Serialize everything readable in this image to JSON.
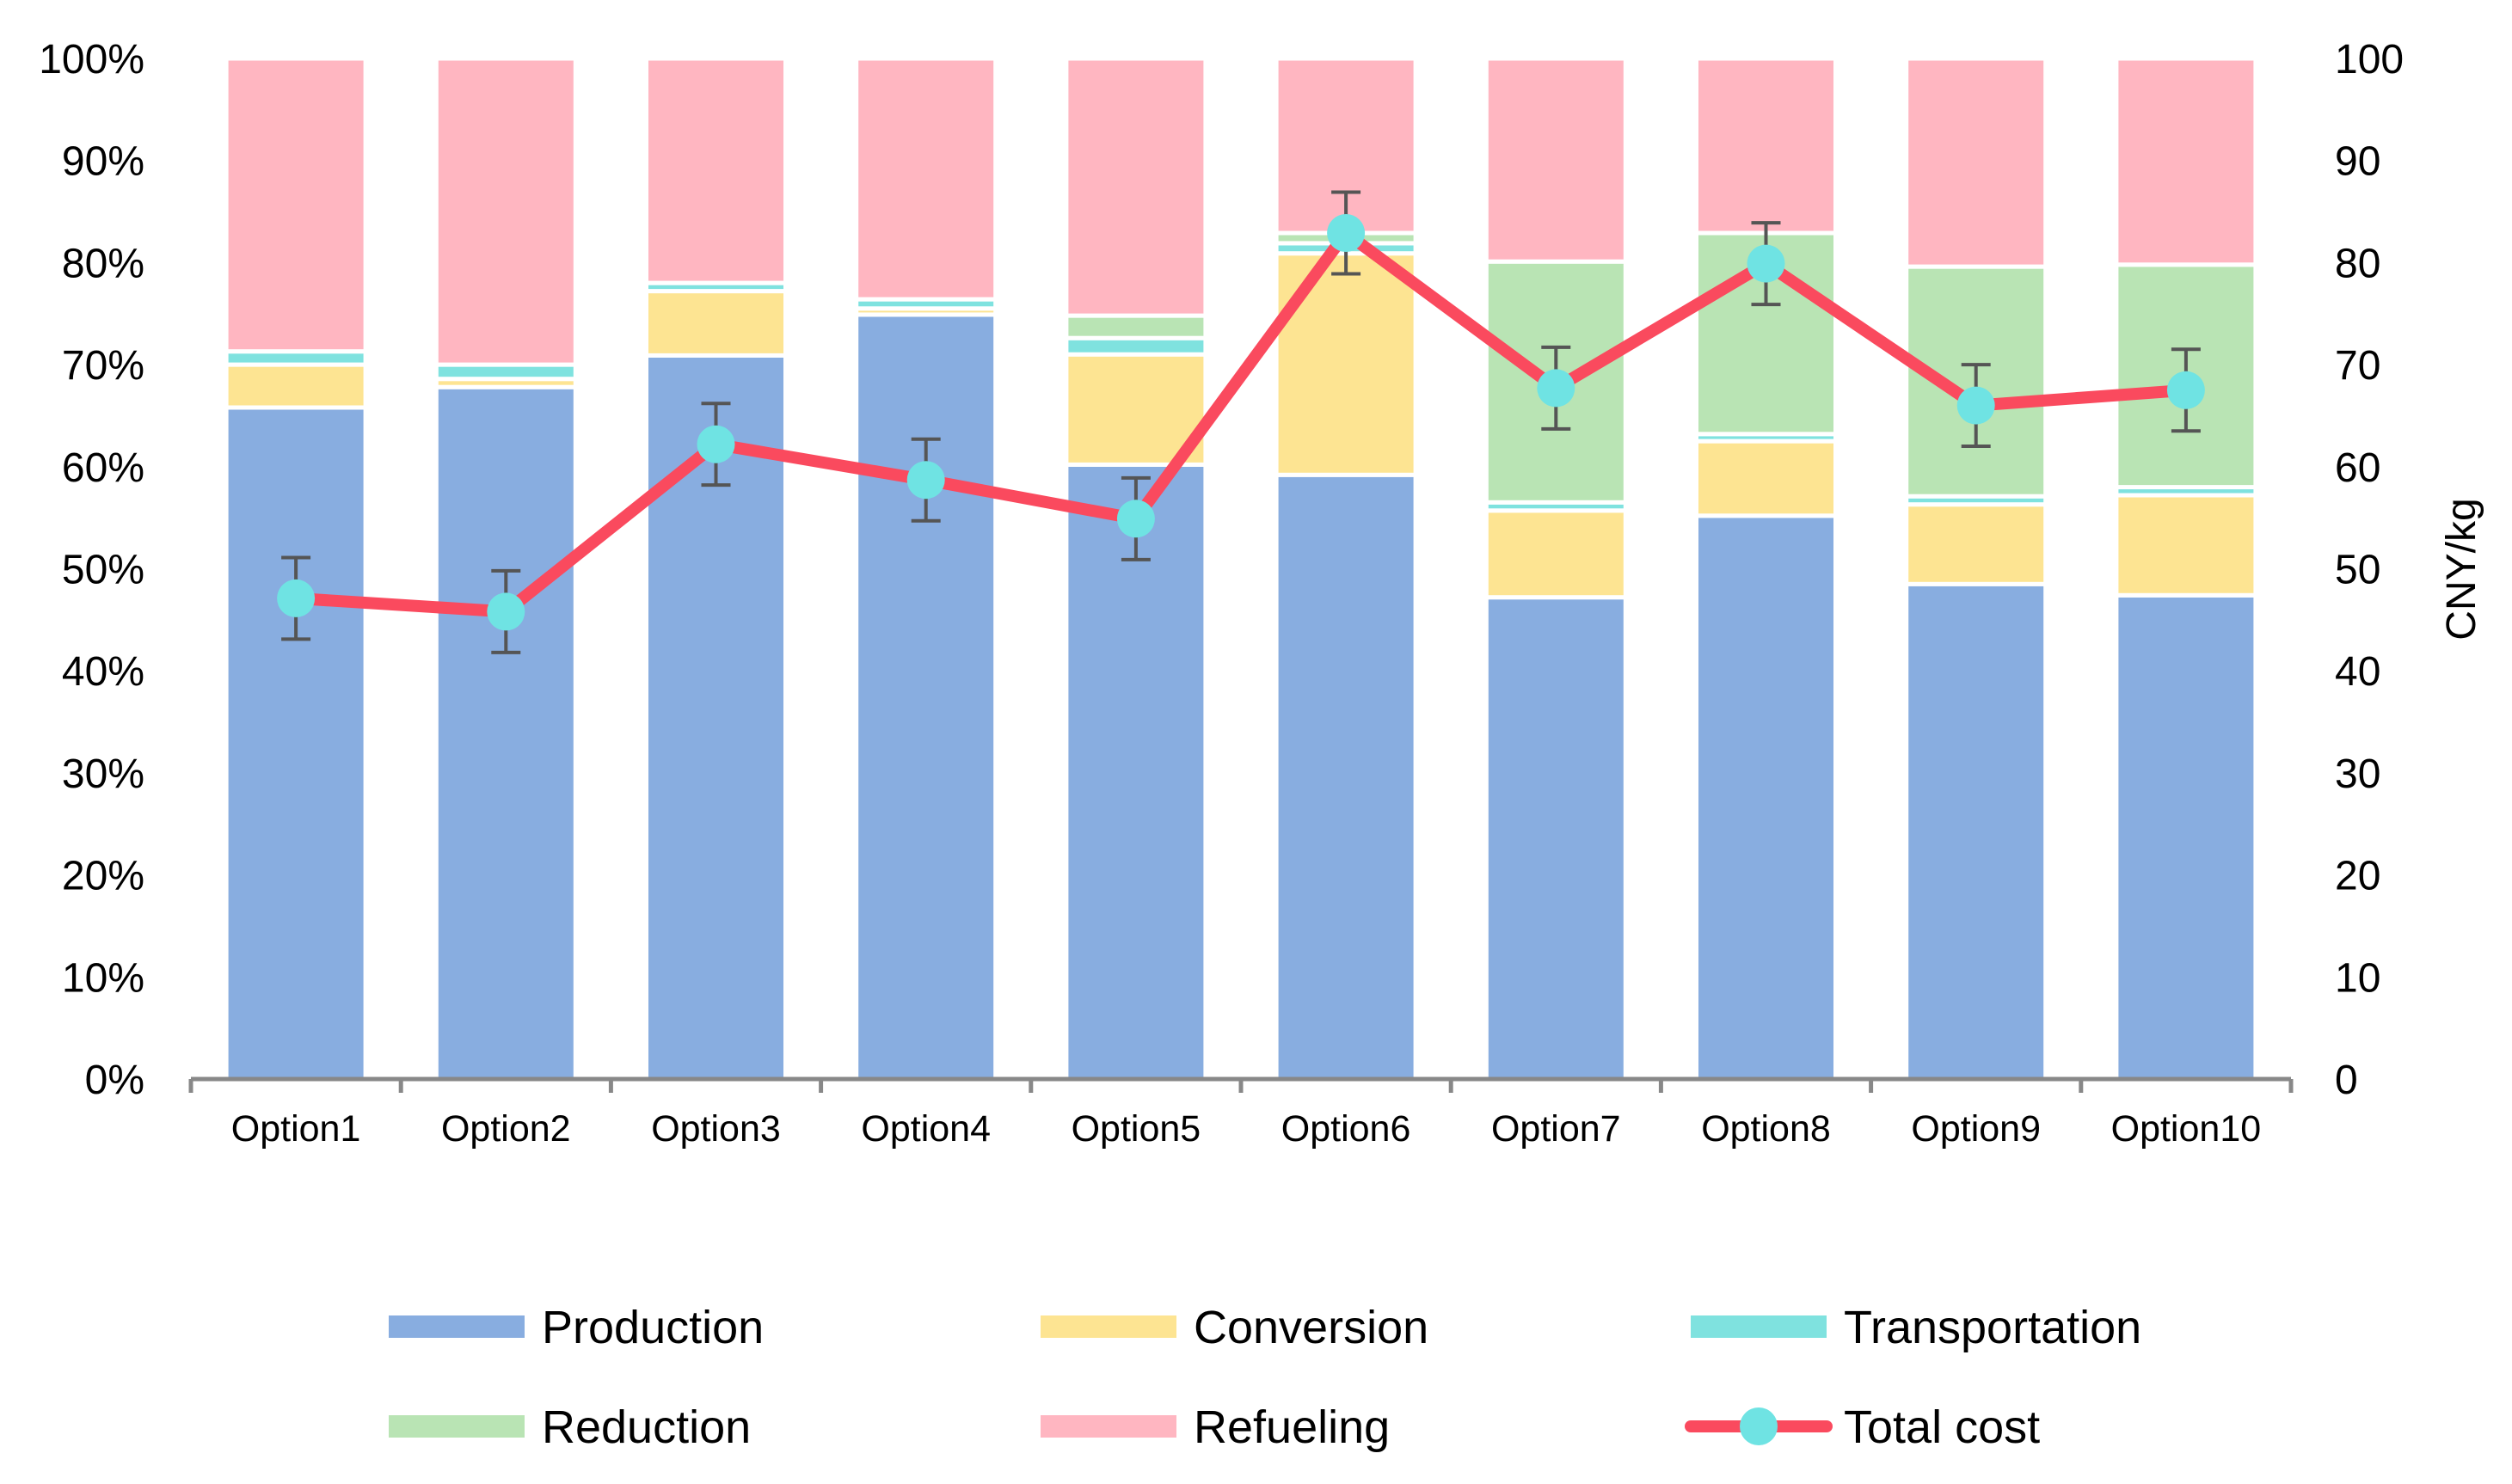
{
  "chart_data": {
    "type": "bar",
    "stacked": true,
    "title": "",
    "categories": [
      "Option1",
      "Option2",
      "Option3",
      "Option4",
      "Option5",
      "Option6",
      "Option7",
      "Option8",
      "Option9",
      "Option10"
    ],
    "y_left": {
      "label": "",
      "ylim": [
        0,
        100
      ],
      "ticks": [
        0,
        10,
        20,
        30,
        40,
        50,
        60,
        70,
        80,
        90,
        100
      ],
      "tick_labels": [
        "0%",
        "10%",
        "20%",
        "30%",
        "40%",
        "50%",
        "60%",
        "70%",
        "80%",
        "90%",
        "100%"
      ]
    },
    "y_right": {
      "label": "CNY/kg",
      "ylim": [
        0,
        100
      ],
      "ticks": [
        0,
        10,
        20,
        30,
        40,
        50,
        60,
        70,
        80,
        90,
        100
      ],
      "tick_labels": [
        "0",
        "10",
        "20",
        "30",
        "40",
        "50",
        "60",
        "70",
        "80",
        "90",
        "100"
      ]
    },
    "series": [
      {
        "name": "Production",
        "color": "#88ADE0",
        "values": [
          65.8,
          67.8,
          70.9,
          74.9,
          60.2,
          59.2,
          47.2,
          55.2,
          48.5,
          47.4
        ]
      },
      {
        "name": "Conversion",
        "color": "#FDE492",
        "values": [
          4.2,
          0.8,
          6.3,
          0.6,
          10.8,
          21.7,
          8.5,
          7.3,
          7.8,
          9.8
        ]
      },
      {
        "name": "Transportation",
        "color": "#7FE2DF",
        "values": [
          1.3,
          1.4,
          0.8,
          0.9,
          1.6,
          1.0,
          0.8,
          0.7,
          0.8,
          0.8
        ]
      },
      {
        "name": "Reduction",
        "color": "#B9E4B4",
        "values": [
          0,
          0,
          0,
          0,
          2.2,
          1.0,
          23.6,
          19.7,
          22.5,
          21.8
        ]
      },
      {
        "name": "Refueling",
        "color": "#FFB6C1",
        "values": [
          28.7,
          30.0,
          22.0,
          23.6,
          25.2,
          17.1,
          19.9,
          17.1,
          20.4,
          20.2
        ]
      }
    ],
    "line": {
      "name": "Total cost",
      "axis": "right",
      "color": "#FA4A5E",
      "marker_color": "#6FE3E3",
      "values": [
        47.1,
        45.8,
        62.2,
        58.7,
        54.9,
        82.9,
        67.7,
        79.9,
        66.0,
        67.5
      ],
      "error": [
        4.0,
        4.0,
        4.0,
        4.0,
        4.0,
        4.0,
        4.0,
        4.0,
        4.0,
        4.0
      ]
    },
    "legend": {
      "position": "bottom",
      "order": [
        "Production",
        "Conversion",
        "Transportation",
        "Reduction",
        "Refueling",
        "Total cost"
      ]
    },
    "grid": false
  }
}
